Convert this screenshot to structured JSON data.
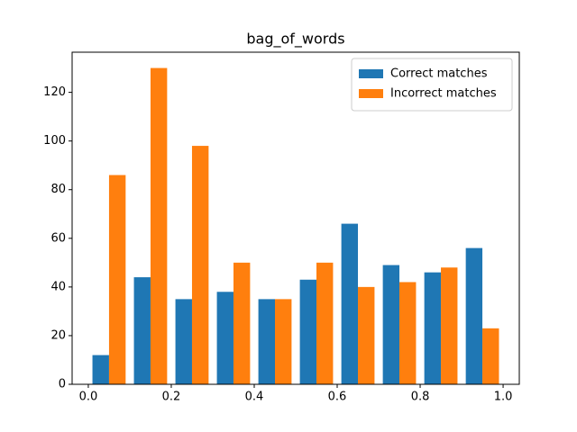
{
  "chart_data": {
    "type": "histogram",
    "title": "bag_of_words",
    "bins": [
      0.0,
      0.1,
      0.2,
      0.3,
      0.4,
      0.5,
      0.6,
      0.7,
      0.8,
      0.9,
      1.0
    ],
    "series": [
      {
        "name": "Correct matches",
        "color": "#1f77b4",
        "values": [
          12,
          44,
          35,
          38,
          35,
          43,
          66,
          49,
          46,
          56
        ]
      },
      {
        "name": "Incorrect matches",
        "color": "#ff7f0e",
        "values": [
          86,
          130,
          98,
          50,
          35,
          50,
          40,
          42,
          48,
          23
        ]
      }
    ],
    "xlim": [
      -0.039,
      1.039
    ],
    "xticks": [
      {
        "value": 0.0,
        "label": "0.0"
      },
      {
        "value": 0.2,
        "label": "0.2"
      },
      {
        "value": 0.4,
        "label": "0.4"
      },
      {
        "value": 0.6,
        "label": "0.6"
      },
      {
        "value": 0.8,
        "label": "0.8"
      },
      {
        "value": 1.0,
        "label": "1.0"
      }
    ],
    "ylim": [
      0,
      136.5
    ],
    "yticks": [
      0,
      20,
      40,
      60,
      80,
      100,
      120
    ],
    "legend": "upper right"
  }
}
